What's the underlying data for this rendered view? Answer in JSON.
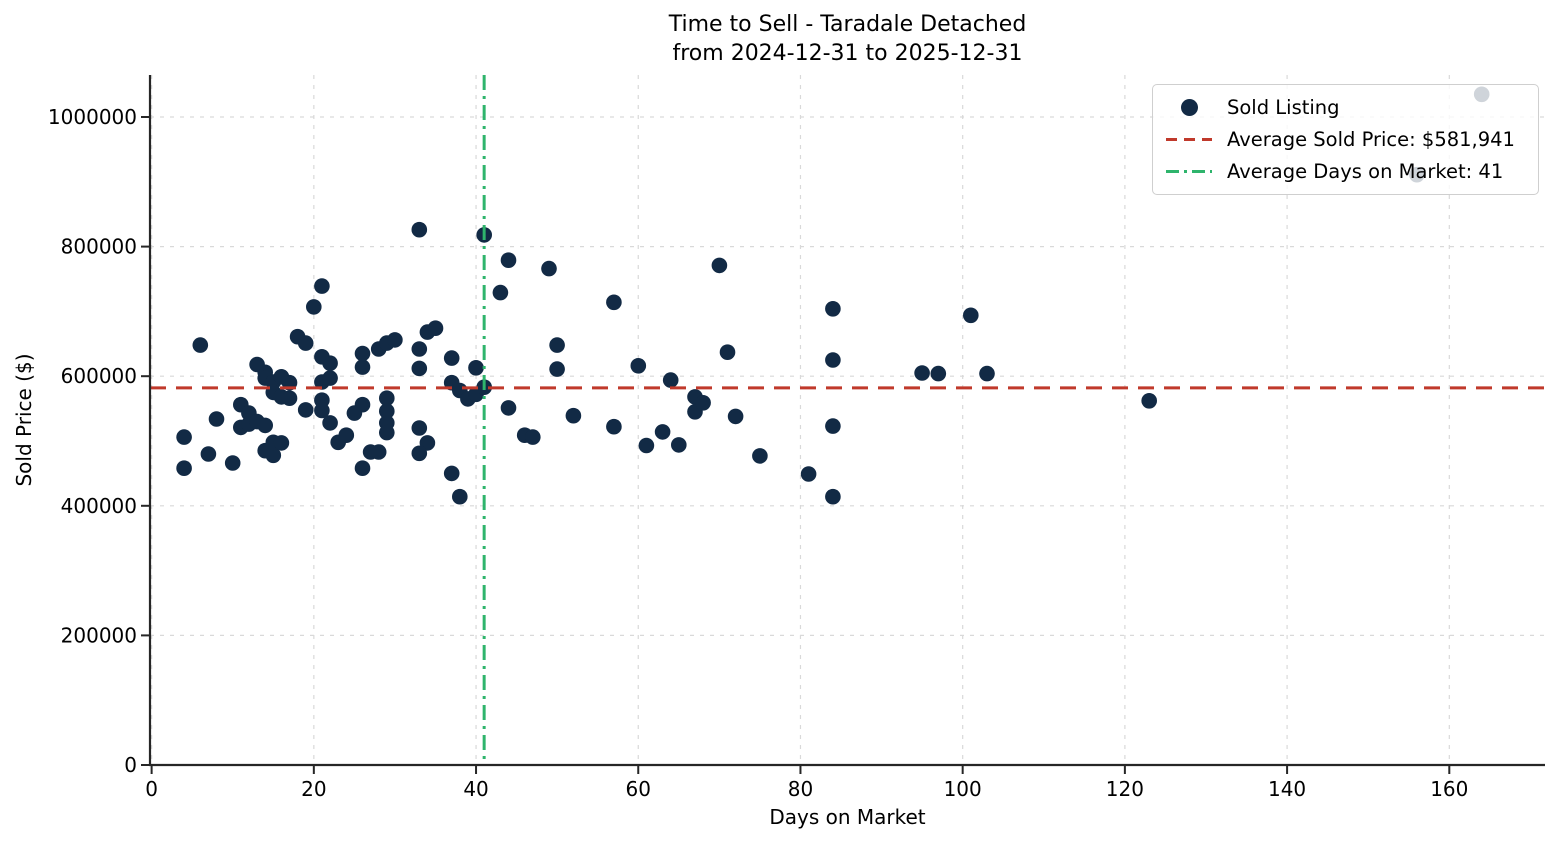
{
  "title": {
    "line1": "Time to Sell - Taradale Detached",
    "line2": "from 2024-12-31 to 2025-12-31"
  },
  "axes": {
    "xlabel": "Days on Market",
    "ylabel": "Sold Price ($)",
    "x_ticks": [
      0,
      20,
      40,
      60,
      80,
      100,
      120,
      140,
      160
    ],
    "y_ticks": [
      0,
      200000,
      400000,
      600000,
      800000,
      1000000
    ]
  },
  "legend": {
    "items": [
      {
        "label": "Sold Listing",
        "marker": "dot",
        "color": "#122a45"
      },
      {
        "label": "Average Sold Price: $581,941",
        "marker": "dashed-line",
        "color": "#c0392b"
      },
      {
        "label": "Average Days on Market: 41",
        "marker": "dashdot-line",
        "color": "#2eb46c"
      }
    ]
  },
  "colors": {
    "dot": "#122a45",
    "avg_price_line": "#c0392b",
    "avg_days_line": "#2eb46c",
    "grid": "#d9d9d9",
    "spine": "#262626",
    "text": "#000000"
  },
  "chart_data": {
    "type": "scatter",
    "title": "Time to Sell - Taradale Detached from 2024-12-31 to 2025-12-31",
    "xlabel": "Days on Market",
    "ylabel": "Sold Price ($)",
    "xlim": [
      -0.2,
      171.8
    ],
    "ylim": [
      0,
      1064800
    ],
    "grid": true,
    "legend_position": "upper right",
    "avg_sold_price": 581941,
    "avg_days_on_market": 41,
    "reference_lines": [
      {
        "axis": "y",
        "value": 581941,
        "style": "dashed",
        "color": "#c0392b",
        "label": "Average Sold Price: $581,941"
      },
      {
        "axis": "x",
        "value": 41,
        "style": "dashdot",
        "color": "#2eb46c",
        "label": "Average Days on Market: 41"
      }
    ],
    "series": [
      {
        "name": "Sold Listing",
        "marker_color": "#122a45",
        "points": [
          [
            4,
            506000
          ],
          [
            4,
            458000
          ],
          [
            6,
            648000
          ],
          [
            7,
            480000
          ],
          [
            8,
            534000
          ],
          [
            10,
            466000
          ],
          [
            11,
            556000
          ],
          [
            12,
            543000
          ],
          [
            11,
            521000
          ],
          [
            12,
            526000
          ],
          [
            13,
            530000
          ],
          [
            14,
            524000
          ],
          [
            13,
            618000
          ],
          [
            14,
            606000
          ],
          [
            14,
            597000
          ],
          [
            15,
            591000
          ],
          [
            16,
            599000
          ],
          [
            17,
            590000
          ],
          [
            14,
            485000
          ],
          [
            15,
            478000
          ],
          [
            15,
            498000
          ],
          [
            16,
            497000
          ],
          [
            15,
            575000
          ],
          [
            16,
            568000
          ],
          [
            17,
            566000
          ],
          [
            18,
            661000
          ],
          [
            19,
            651000
          ],
          [
            19,
            548000
          ],
          [
            21,
            563000
          ],
          [
            21,
            547000
          ],
          [
            20,
            707000
          ],
          [
            21,
            739000
          ],
          [
            21,
            630000
          ],
          [
            22,
            620000
          ],
          [
            21,
            591000
          ],
          [
            22,
            597000
          ],
          [
            22,
            528000
          ],
          [
            23,
            498000
          ],
          [
            24,
            509000
          ],
          [
            25,
            543000
          ],
          [
            26,
            556000
          ],
          [
            26,
            458000
          ],
          [
            27,
            483000
          ],
          [
            28,
            483000
          ],
          [
            29,
            566000
          ],
          [
            29,
            546000
          ],
          [
            29,
            528000
          ],
          [
            29,
            513000
          ],
          [
            26,
            614000
          ],
          [
            26,
            635000
          ],
          [
            28,
            642000
          ],
          [
            29,
            651000
          ],
          [
            30,
            656000
          ],
          [
            33,
            826000
          ],
          [
            33,
            642000
          ],
          [
            33,
            612000
          ],
          [
            34,
            668000
          ],
          [
            35,
            674000
          ],
          [
            37,
            628000
          ],
          [
            37,
            590000
          ],
          [
            38,
            578000
          ],
          [
            39,
            565000
          ],
          [
            40,
            572000
          ],
          [
            40,
            613000
          ],
          [
            41,
            583000
          ],
          [
            33,
            520000
          ],
          [
            34,
            497000
          ],
          [
            33,
            481000
          ],
          [
            37,
            450000
          ],
          [
            38,
            414000
          ],
          [
            41,
            818000
          ],
          [
            44,
            779000
          ],
          [
            43,
            729000
          ],
          [
            49,
            766000
          ],
          [
            44,
            551000
          ],
          [
            46,
            509000
          ],
          [
            47,
            506000
          ],
          [
            50,
            648000
          ],
          [
            50,
            611000
          ],
          [
            52,
            539000
          ],
          [
            57,
            714000
          ],
          [
            57,
            522000
          ],
          [
            60,
            616000
          ],
          [
            61,
            493000
          ],
          [
            63,
            514000
          ],
          [
            64,
            594000
          ],
          [
            65,
            494000
          ],
          [
            67,
            568000
          ],
          [
            67,
            545000
          ],
          [
            68,
            559000
          ],
          [
            70,
            771000
          ],
          [
            71,
            637000
          ],
          [
            72,
            538000
          ],
          [
            75,
            477000
          ],
          [
            81,
            449000
          ],
          [
            84,
            704000
          ],
          [
            84,
            625000
          ],
          [
            84,
            523000
          ],
          [
            84,
            414000
          ],
          [
            95,
            605000
          ],
          [
            97,
            604000
          ],
          [
            101,
            694000
          ],
          [
            103,
            604000
          ],
          [
            123,
            562000
          ],
          [
            156,
            911000
          ],
          [
            164,
            1035000
          ]
        ]
      }
    ]
  }
}
